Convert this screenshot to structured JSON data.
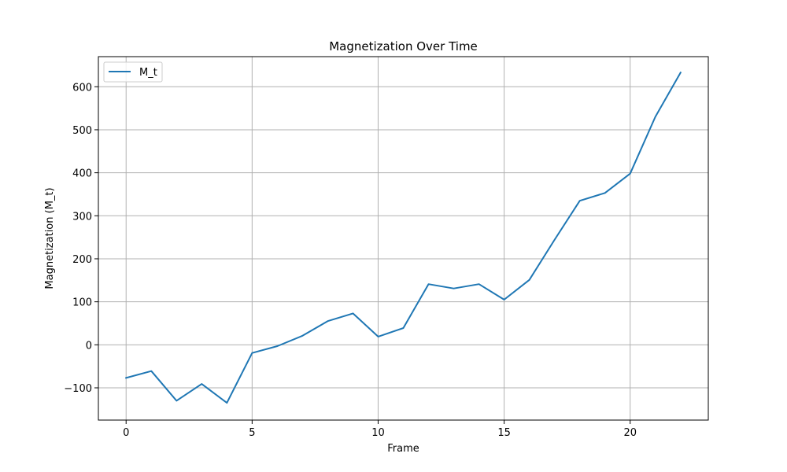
{
  "chart_data": {
    "type": "line",
    "title": "Magnetization Over Time",
    "xlabel": "Frame",
    "ylabel": "Magnetization (M_t)",
    "xlim": [
      -1.1,
      23.1
    ],
    "ylim": [
      -175,
      670
    ],
    "xticks": [
      0,
      5,
      10,
      15,
      20
    ],
    "yticks": [
      -100,
      0,
      100,
      200,
      300,
      400,
      500,
      600
    ],
    "ytick_labels": [
      "−100",
      "0",
      "100",
      "200",
      "300",
      "400",
      "500",
      "600"
    ],
    "grid": true,
    "legend": {
      "placement": "upper-left"
    },
    "series": [
      {
        "name": "M_t",
        "color": "#1f77b4",
        "x": [
          0,
          1,
          2,
          3,
          4,
          5,
          6,
          7,
          8,
          9,
          10,
          11,
          12,
          13,
          14,
          15,
          16,
          17,
          18,
          19,
          20,
          21,
          22
        ],
        "y": [
          -77,
          -61,
          -130,
          -91,
          -135,
          -19,
          -3,
          21,
          55,
          73,
          19,
          39,
          141,
          131,
          141,
          105,
          151,
          244,
          335,
          353,
          398,
          530,
          633
        ]
      }
    ]
  }
}
